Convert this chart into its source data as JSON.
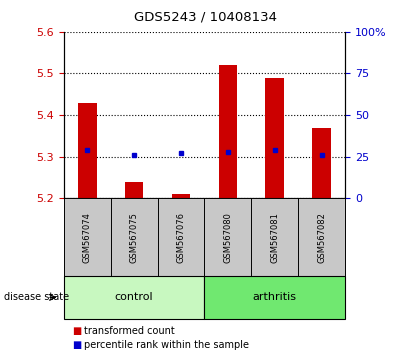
{
  "title": "GDS5243 / 10408134",
  "samples": [
    "GSM567074",
    "GSM567075",
    "GSM567076",
    "GSM567080",
    "GSM567081",
    "GSM567082"
  ],
  "red_values": [
    5.43,
    5.24,
    5.21,
    5.52,
    5.49,
    5.37
  ],
  "blue_values": [
    5.315,
    5.305,
    5.308,
    5.31,
    5.315,
    5.305
  ],
  "y_min": 5.2,
  "y_max": 5.6,
  "y_ticks": [
    5.2,
    5.3,
    5.4,
    5.5,
    5.6
  ],
  "y2_ticks": [
    0,
    25,
    50,
    75,
    100
  ],
  "y2_tick_labels": [
    "0",
    "25",
    "50",
    "75",
    "100%"
  ],
  "red_color": "#cc0000",
  "blue_color": "#0000cc",
  "bar_base": 5.2,
  "label_area_color": "#c8c8c8",
  "control_color": "#c8f8c0",
  "arthritis_color": "#70e870",
  "legend_red_label": "transformed count",
  "legend_blue_label": "percentile rank within the sample",
  "disease_state_label": "disease state"
}
